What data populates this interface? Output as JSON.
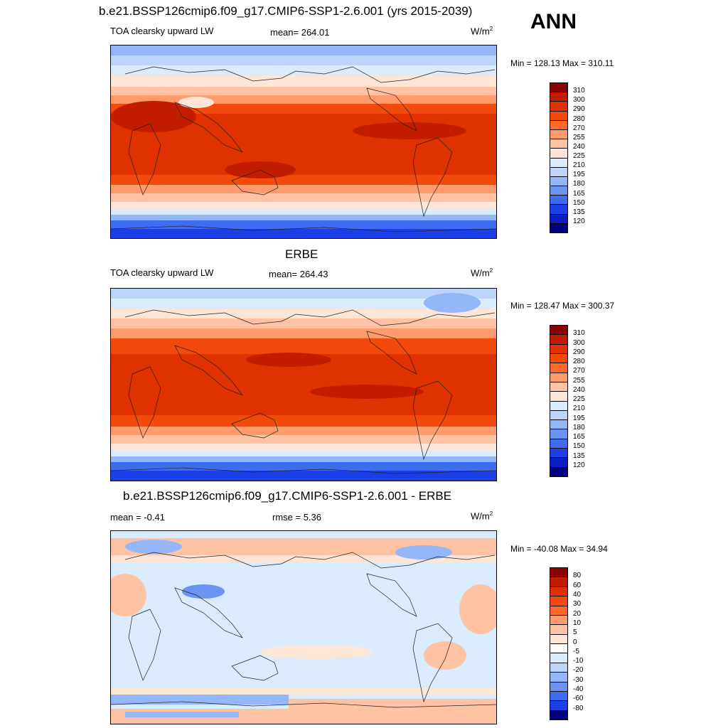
{
  "header": {
    "main_title": "b.e21.BSSP126cmip6.f09_g17.CMIP6-SSP1-2.6.001 (yrs 2015-2039)",
    "season": "ANN"
  },
  "panels": [
    {
      "id": "model",
      "title": "",
      "variable": "TOA clearsky upward LW",
      "stat1": "mean= 264.01",
      "stat2": "",
      "units_base": "W/m",
      "units_exp": "2",
      "minmax": "Min = 128.13 Max = 310.11",
      "colorbar_labels": [
        "310",
        "300",
        "290",
        "280",
        "270",
        "255",
        "240",
        "225",
        "210",
        "195",
        "180",
        "165",
        "150",
        "135",
        "120"
      ],
      "colors": [
        "#8b0000",
        "#c31d00",
        "#e03200",
        "#f24a0b",
        "#ff6a2a",
        "#ff9a6a",
        "#ffc2a3",
        "#fde6d6",
        "#d9ebfc",
        "#bcd6fb",
        "#94b7f9",
        "#6b93f3",
        "#3e6cf0",
        "#1d3fe8",
        "#0b1fc0",
        "#000080"
      ]
    },
    {
      "id": "obs",
      "title": "ERBE",
      "variable": "TOA clearsky upward LW",
      "stat1": "mean= 264.43",
      "stat2": "",
      "units_base": "W/m",
      "units_exp": "2",
      "minmax": "Min = 128.47 Max = 300.37",
      "colorbar_labels": [
        "310",
        "300",
        "290",
        "280",
        "270",
        "255",
        "240",
        "225",
        "210",
        "195",
        "180",
        "165",
        "150",
        "135",
        "120"
      ],
      "colors": [
        "#8b0000",
        "#c31d00",
        "#e03200",
        "#f24a0b",
        "#ff6a2a",
        "#ff9a6a",
        "#ffc2a3",
        "#fde6d6",
        "#d9ebfc",
        "#bcd6fb",
        "#94b7f9",
        "#6b93f3",
        "#3e6cf0",
        "#1d3fe8",
        "#0b1fc0",
        "#000080"
      ]
    },
    {
      "id": "diff",
      "title": "b.e21.BSSP126cmip6.f09_g17.CMIP6-SSP1-2.6.001 - ERBE",
      "variable": "",
      "stat1": "mean =  -0.41",
      "stat2": "rmse =   5.36",
      "units_base": "W/m",
      "units_exp": "2",
      "minmax": "Min = -40.08 Max =  34.94",
      "colorbar_labels": [
        "80",
        "60",
        "40",
        "30",
        "20",
        "10",
        "5",
        "0",
        "-5",
        "-10",
        "-20",
        "-30",
        "-40",
        "-60",
        "-80"
      ],
      "colors": [
        "#8b0000",
        "#c31d00",
        "#e03200",
        "#f24a0b",
        "#ff6a2a",
        "#ff9a6a",
        "#ffc2a3",
        "#fde6d6",
        "#ffffff",
        "#d9ebfc",
        "#bcd6fb",
        "#94b7f9",
        "#6b93f3",
        "#3e6cf0",
        "#1d3fe8",
        "#000080"
      ]
    }
  ]
}
